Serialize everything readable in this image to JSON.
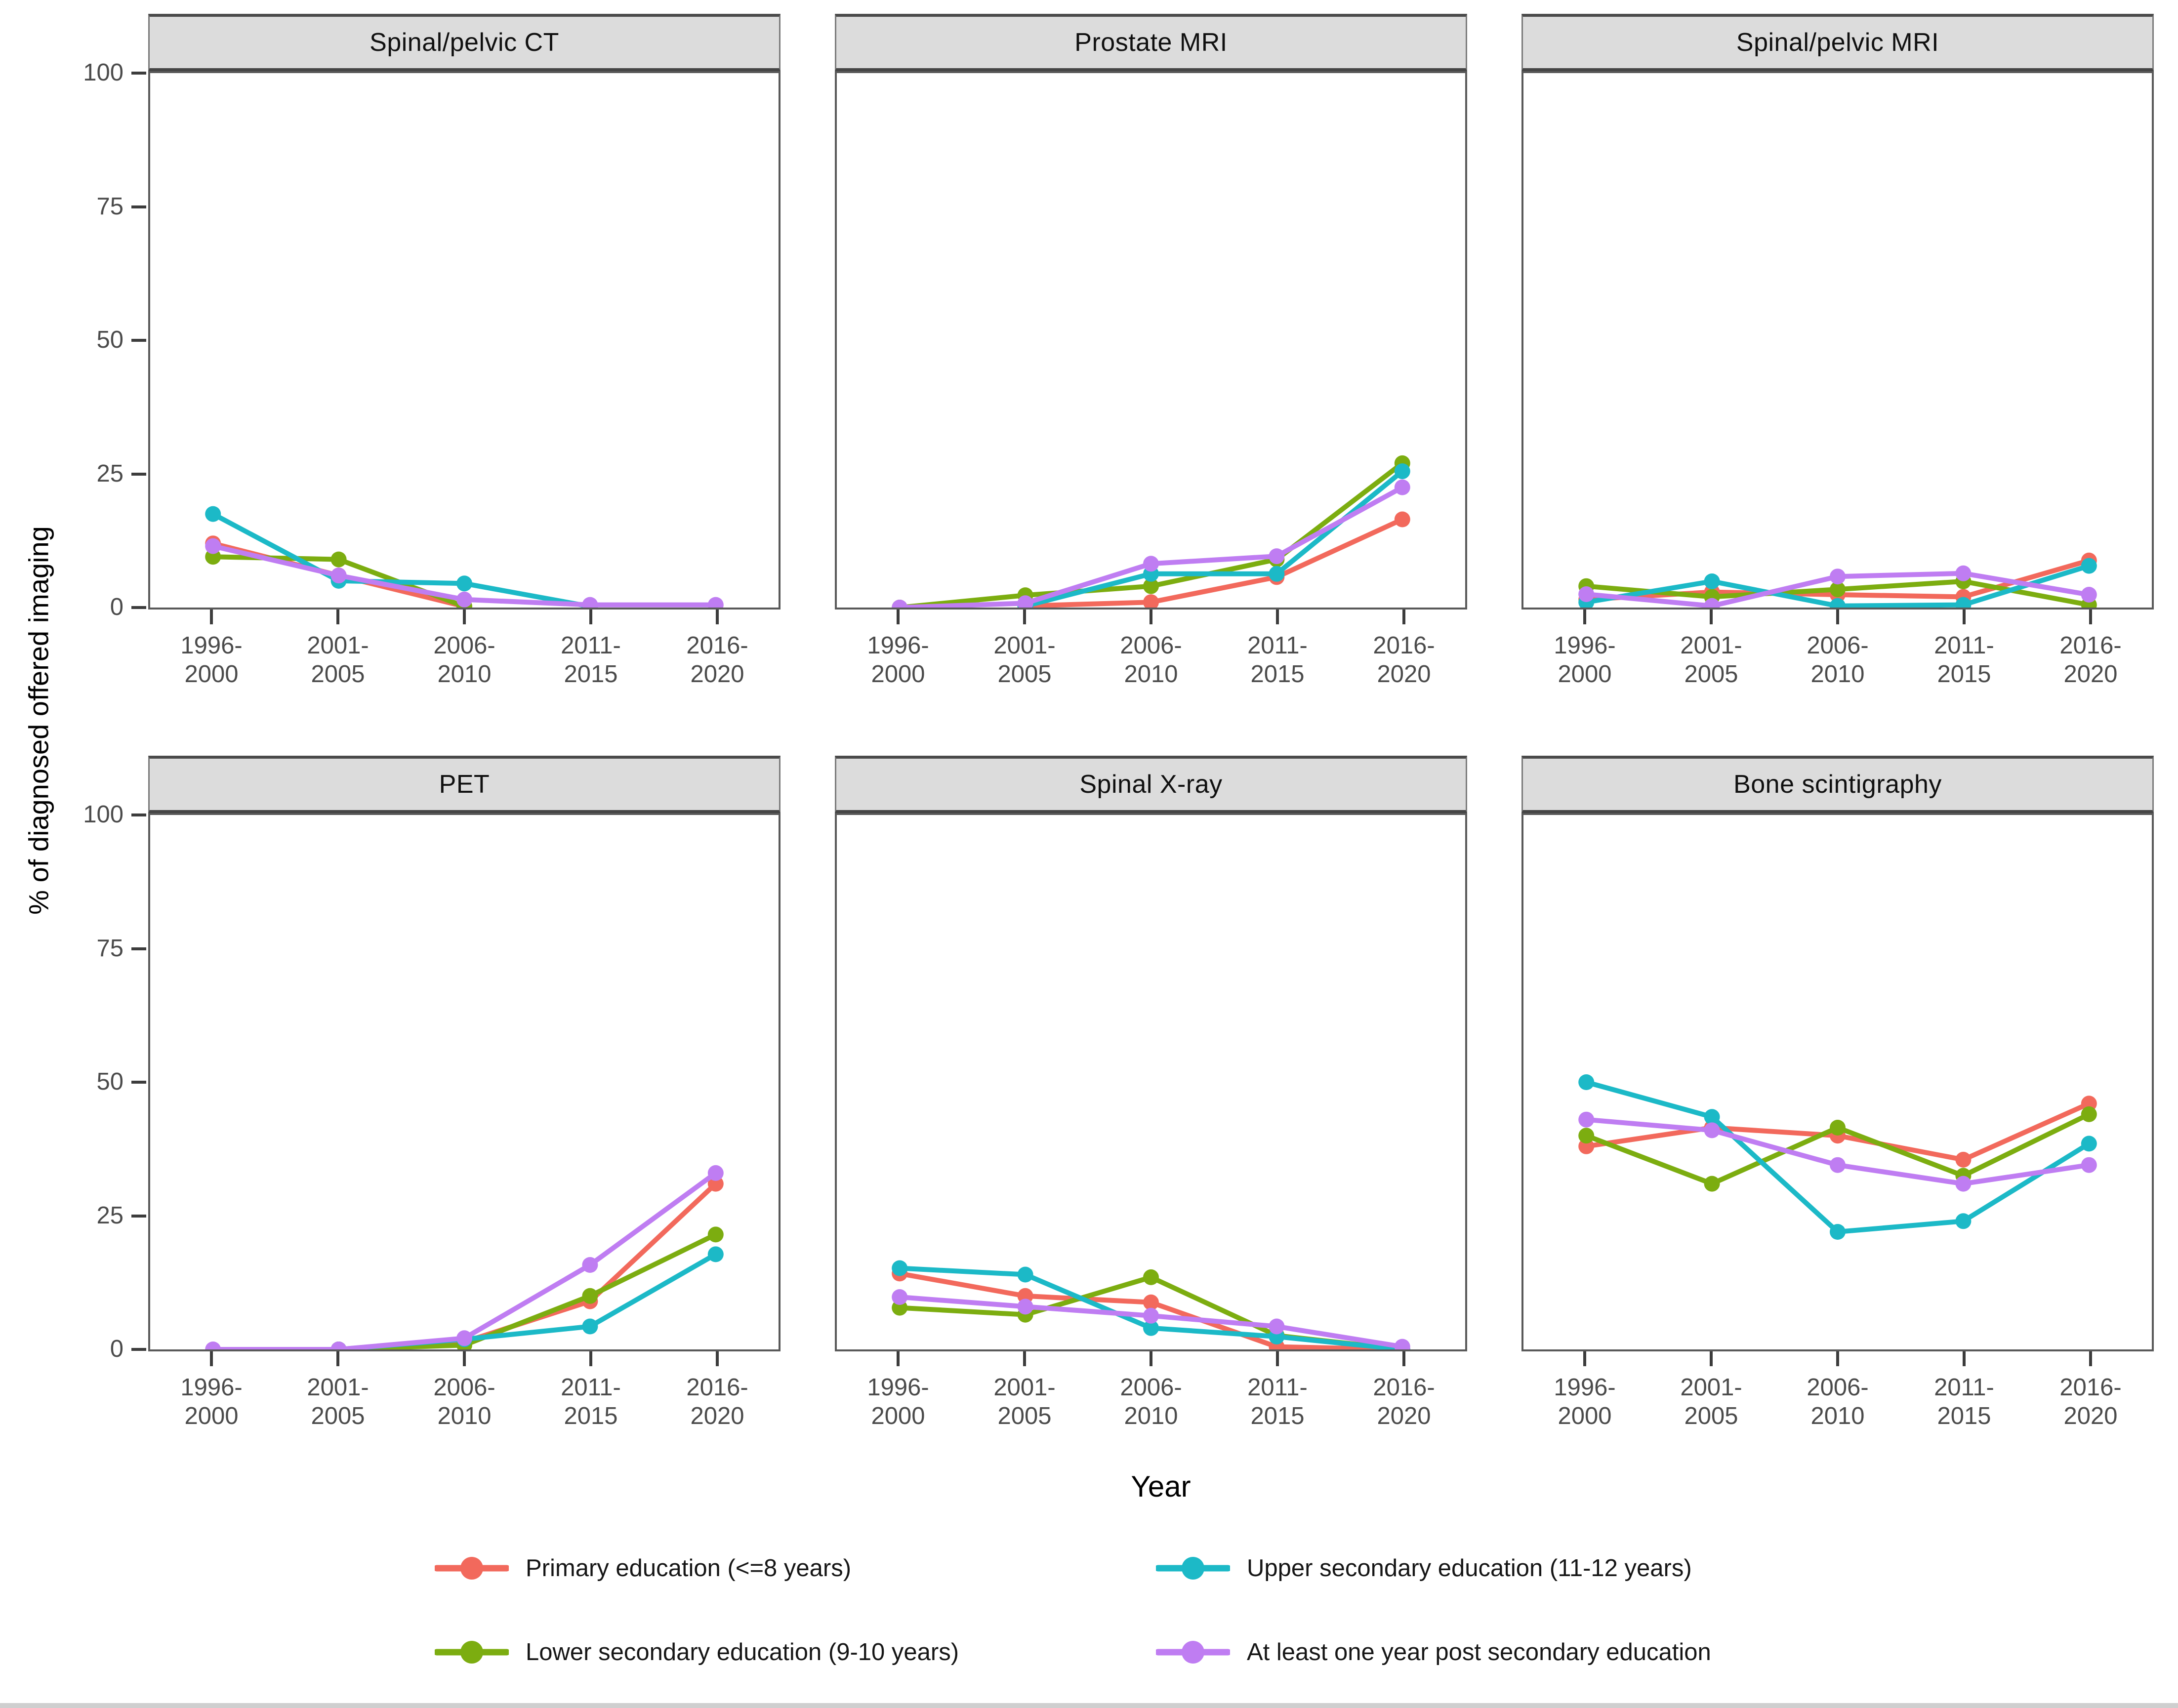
{
  "chart_data": {
    "type": "line",
    "title": "",
    "x_label": "Year",
    "y_label": "% of diagnosed offered imaging",
    "ylim": [
      0,
      100
    ],
    "y_ticks": [
      0,
      25,
      50,
      75,
      100
    ],
    "grid": "off",
    "legend_position": "bottom",
    "categories": [
      "1996-2000",
      "2001-2005",
      "2006-2010",
      "2011-2015",
      "2016-2020"
    ],
    "x_tick_lines": [
      [
        "1996-",
        "2000"
      ],
      [
        "2001-",
        "2005"
      ],
      [
        "2006-",
        "2010"
      ],
      [
        "2011-",
        "2015"
      ],
      [
        "2016-",
        "2020"
      ]
    ],
    "series_defs": [
      {
        "id": "primary",
        "name": "Primary education (<=8 years)",
        "color": "#F2695C"
      },
      {
        "id": "lower",
        "name": "Lower secondary education (9-10 years)",
        "color": "#7CAD10"
      },
      {
        "id": "upper",
        "name": "Upper secondary education (11-12 years)",
        "color": "#1CB9C7"
      },
      {
        "id": "post",
        "name": "At least one year post secondary education",
        "color": "#BF7DF2"
      }
    ],
    "draw_order": [
      "primary",
      "lower",
      "upper",
      "post"
    ],
    "legend_rows": [
      [
        "primary",
        "upper"
      ],
      [
        "lower",
        "post"
      ]
    ],
    "facets": [
      {
        "title": "Spinal/pelvic CT",
        "values": {
          "primary": [
            12,
            6,
            0.2,
            null,
            null
          ],
          "lower": [
            9.5,
            9,
            0.2,
            null,
            null
          ],
          "upper": [
            17.5,
            5,
            4.5,
            0.2,
            null
          ],
          "post": [
            11.5,
            6,
            1.5,
            0.5,
            0.5
          ]
        }
      },
      {
        "title": "Prostate MRI",
        "values": {
          "primary": [
            null,
            0.3,
            1,
            5.7,
            16.5
          ],
          "lower": [
            0,
            2.3,
            4,
            9,
            27
          ],
          "upper": [
            null,
            0.3,
            6.3,
            6.3,
            25.5
          ],
          "post": [
            0,
            0.8,
            8.2,
            9.6,
            22.5
          ]
        }
      },
      {
        "title": "Spinal/pelvic MRI",
        "values": {
          "primary": [
            1.5,
            2.9,
            2.4,
            2,
            8.8
          ],
          "lower": [
            4,
            2,
            3.4,
            4.9,
            0.5
          ],
          "upper": [
            1,
            4.9,
            0.3,
            0.5,
            7.8
          ],
          "post": [
            2.5,
            0.3,
            5.8,
            6.4,
            2.4
          ]
        }
      },
      {
        "title": "PET",
        "values": {
          "primary": [
            null,
            0,
            1.4,
            9,
            31
          ],
          "lower": [
            null,
            0,
            0.8,
            10,
            21.5
          ],
          "upper": [
            null,
            0,
            1.9,
            4.3,
            17.8
          ],
          "post": [
            0,
            0,
            2.1,
            15.8,
            33
          ]
        }
      },
      {
        "title": "Spinal X-ray",
        "values": {
          "primary": [
            14.2,
            10,
            8.8,
            0.5,
            0
          ],
          "lower": [
            7.8,
            6.5,
            13.5,
            2.6,
            0
          ],
          "upper": [
            15.2,
            14,
            4,
            2.4,
            0
          ],
          "post": [
            9.8,
            8,
            6.3,
            4.3,
            0.5
          ]
        }
      },
      {
        "title": "Bone scintigraphy",
        "values": {
          "primary": [
            38,
            41.5,
            40,
            35.5,
            46
          ],
          "lower": [
            40,
            31,
            41.5,
            32.5,
            44
          ],
          "upper": [
            50,
            43.5,
            22,
            24,
            38.5
          ],
          "post": [
            43,
            41,
            34.5,
            31,
            34.5
          ]
        }
      }
    ]
  }
}
